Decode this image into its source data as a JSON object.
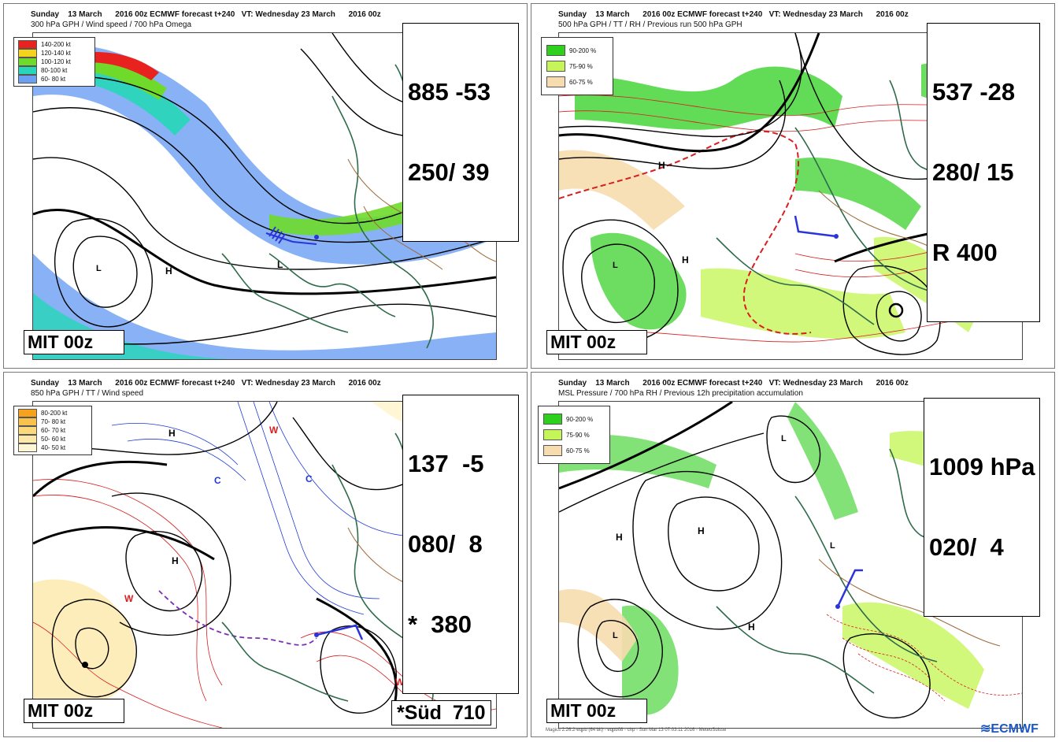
{
  "panels": [
    {
      "header1": "Sunday    13 March      2016 00z ECMWF forecast t+240   VT: Wednesday 23 March      2016 00z",
      "header2": "300 hPa GPH / Wind speed / 700 hPa Omega",
      "legend": [
        {
          "label": "140-200 kt",
          "color": "#e8231f"
        },
        {
          "label": "120-140 kt",
          "color": "#f5d31c"
        },
        {
          "label": "100-120 kt",
          "color": "#6fda2a"
        },
        {
          "label": "80-100 kt",
          "color": "#27d6b8"
        },
        {
          "label": "60- 80 kt",
          "color": "#6a9ff2"
        }
      ],
      "values": [
        "885 -53",
        "250/ 39"
      ],
      "stamp": "MIT 00z"
    },
    {
      "header1": "Sunday    13 March      2016 00z ECMWF forecast t+240   VT: Wednesday 23 March      2016 00z",
      "header2": "500 hPa GPH / TT / RH / Previous run 500 hPa GPH",
      "legend": [
        {
          "label": "90-200 %",
          "color": "#2ecf1d"
        },
        {
          "label": "75-90 %",
          "color": "#c6f55a"
        },
        {
          "label": "60-75 %",
          "color": "#f6dcae"
        }
      ],
      "values": [
        "537 -28",
        "280/ 15",
        "R 400"
      ],
      "stamp": "MIT 00z"
    },
    {
      "header1": "Sunday    13 March      2016 00z ECMWF forecast t+240   VT: Wednesday 23 March      2016 00z",
      "header2": "850 hPa GPH / TT / Wind speed",
      "legend": [
        {
          "label": "80-200 kt",
          "color": "#f7a21c"
        },
        {
          "label": "70- 80 kt",
          "color": "#f9c24d"
        },
        {
          "label": "60- 70 kt",
          "color": "#fbd87a"
        },
        {
          "label": "50- 60 kt",
          "color": "#fde8aa"
        },
        {
          "label": "40- 50 kt",
          "color": "#fff6d6"
        }
      ],
      "values": [
        "137  -5",
        "080/  8",
        "*  380"
      ],
      "stamp": "MIT 00z",
      "extra": "*Süd  710"
    },
    {
      "header1": "Sunday    13 March      2016 00z ECMWF forecast t+240   VT: Wednesday 23 March      2016 00z",
      "header2": "MSL Pressure / 700 hPa RH / Previous 12h precipitation accumulation",
      "legend": [
        {
          "label": "90-200 %",
          "color": "#2ecf1d"
        },
        {
          "label": "75-90 %",
          "color": "#c6f55a"
        },
        {
          "label": "60-75 %",
          "color": "#f6dcae"
        }
      ],
      "values": [
        "1009 hPa",
        "020/  4"
      ],
      "stamp": "MIT 00z"
    }
  ],
  "footer": "Magics 2.26.2-eqpb (64 bit) - eqpb08 - chp - Sun Mar 13 07:03:11 2016 - MeteoSuisse",
  "logo": "ECMWF",
  "colors": {
    "contour": "#000000",
    "coast": "#2f6b4a",
    "border": "#a06a3a",
    "temp": "#d81e1e",
    "cold": "#1f3ad8"
  }
}
